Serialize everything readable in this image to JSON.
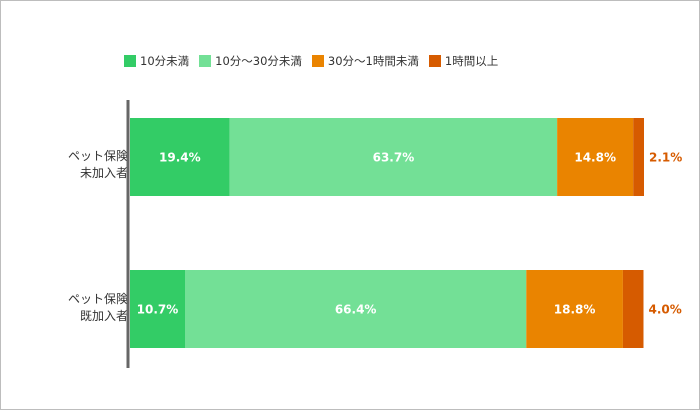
{
  "chart_data": {
    "type": "bar",
    "orientation": "horizontal",
    "stacked": true,
    "percent": true,
    "xlim": [
      0,
      100
    ],
    "grid": false,
    "legend_position": "top",
    "categories": [
      {
        "line1": "ペット保険",
        "line2": "未加入者"
      },
      {
        "line1": "ペット保険",
        "line2": "既加入者"
      }
    ],
    "series": [
      {
        "name": "10分未満",
        "color": "#33cc66",
        "values": [
          19.4,
          10.7
        ],
        "labels": [
          "19.4%",
          "10.7%"
        ]
      },
      {
        "name": "10分〜30分未満",
        "color": "#73e096",
        "values": [
          63.7,
          66.4
        ],
        "labels": [
          "63.7%",
          "66.4%"
        ]
      },
      {
        "name": "30分〜1時間未満",
        "color": "#ea8400",
        "values": [
          14.8,
          18.8
        ],
        "labels": [
          "14.8%",
          "18.8%"
        ]
      },
      {
        "name": "1時間以上",
        "color": "#d65b00",
        "values": [
          2.1,
          4.0
        ],
        "labels": [
          "2.1%",
          "4.0%"
        ]
      }
    ]
  }
}
